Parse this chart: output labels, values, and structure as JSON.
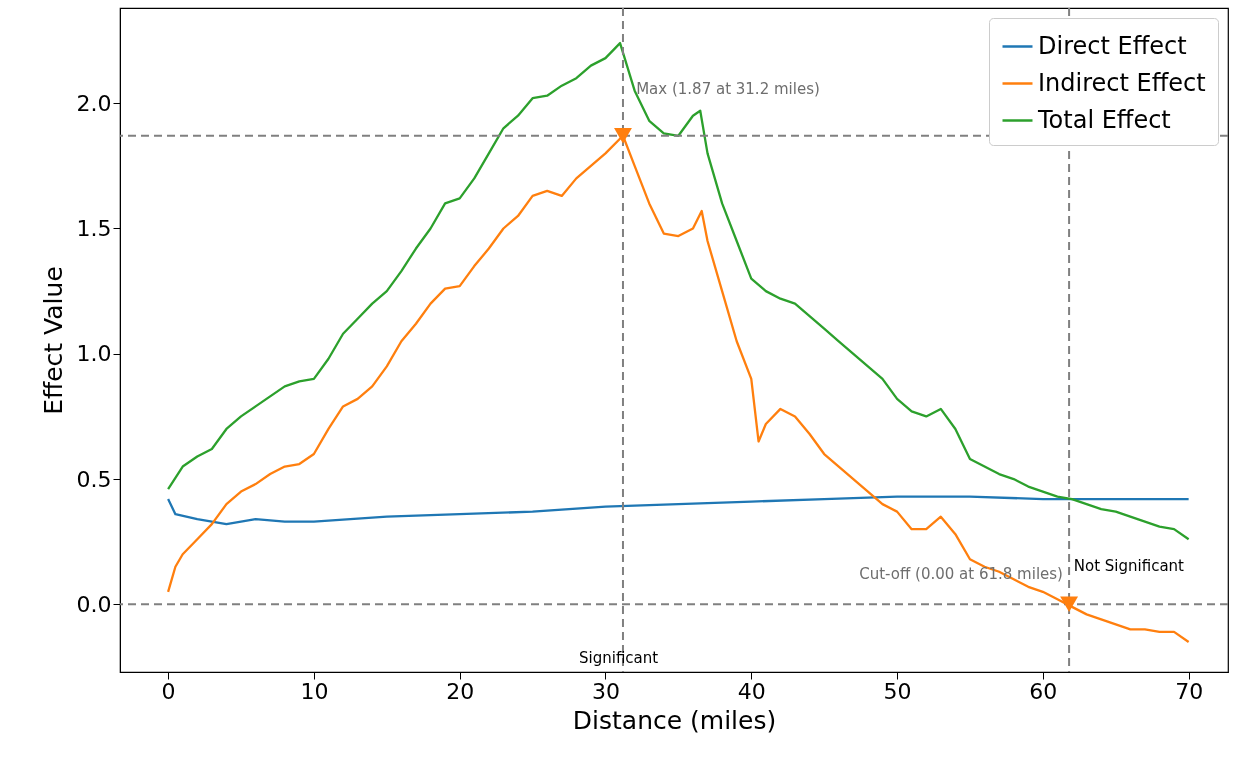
{
  "chart_data": {
    "type": "line",
    "xlabel": "Distance (miles)",
    "ylabel": "Effect Value",
    "xlim": [
      -3.3,
      72.7
    ],
    "ylim": [
      -0.27,
      2.38
    ],
    "xticks": [
      0,
      10,
      20,
      30,
      40,
      50,
      60,
      70
    ],
    "yticks": [
      {
        "value": 0,
        "label": "0.0"
      },
      {
        "value": 0.5,
        "label": "0.5"
      },
      {
        "value": 1,
        "label": "1.0"
      },
      {
        "value": 1.5,
        "label": "1.5"
      },
      {
        "value": 2,
        "label": "2.0"
      }
    ],
    "grid": false,
    "legend": "top right",
    "line_style": "solid",
    "marker": "none",
    "series": [
      {
        "name": "Direct Effect",
        "color": "#1f77b4",
        "x": [
          0,
          0.5,
          2,
          4,
          6,
          8,
          10,
          15,
          20,
          25,
          30,
          35,
          40,
          45,
          50,
          55,
          60,
          65,
          70
        ],
        "values": [
          0.42,
          0.36,
          0.34,
          0.32,
          0.34,
          0.33,
          0.33,
          0.35,
          0.36,
          0.37,
          0.39,
          0.4,
          0.41,
          0.42,
          0.43,
          0.43,
          0.42,
          0.42,
          0.42
        ]
      },
      {
        "name": "Indirect Effect",
        "color": "#ff7f0e",
        "x": [
          0,
          0.5,
          1,
          2,
          3,
          4,
          5,
          6,
          7,
          8,
          9,
          10,
          11,
          12,
          13,
          14,
          15,
          16,
          17,
          18,
          19,
          20,
          21,
          22,
          23,
          24,
          25,
          26,
          27,
          28,
          29,
          30,
          31.2,
          32,
          33,
          34,
          35,
          36,
          36.6,
          37,
          38,
          39,
          40,
          40.5,
          41,
          42,
          43,
          44,
          45,
          46,
          47,
          48,
          49,
          50,
          51,
          52,
          53,
          54,
          55,
          56,
          57,
          58,
          59,
          60,
          61,
          62,
          63,
          64,
          65,
          66,
          67,
          68,
          69,
          70
        ],
        "values": [
          0.05,
          0.15,
          0.2,
          0.26,
          0.32,
          0.4,
          0.45,
          0.48,
          0.52,
          0.55,
          0.56,
          0.6,
          0.7,
          0.79,
          0.82,
          0.87,
          0.95,
          1.05,
          1.12,
          1.2,
          1.26,
          1.27,
          1.35,
          1.42,
          1.5,
          1.55,
          1.63,
          1.65,
          1.63,
          1.7,
          1.75,
          1.8,
          1.87,
          1.75,
          1.6,
          1.48,
          1.47,
          1.5,
          1.57,
          1.45,
          1.25,
          1.05,
          0.9,
          0.65,
          0.72,
          0.78,
          0.75,
          0.68,
          0.6,
          0.55,
          0.5,
          0.45,
          0.4,
          0.37,
          0.3,
          0.3,
          0.35,
          0.28,
          0.18,
          0.15,
          0.13,
          0.1,
          0.07,
          0.05,
          0.02,
          -0.01,
          -0.04,
          -0.06,
          -0.08,
          -0.1,
          -0.1,
          -0.11,
          -0.11,
          -0.15
        ]
      },
      {
        "name": "Total Effect",
        "color": "#2ca02c",
        "x": [
          0,
          1,
          2,
          3,
          4,
          5,
          6,
          7,
          8,
          9,
          10,
          11,
          12,
          13,
          14,
          15,
          16,
          17,
          18,
          19,
          20,
          21,
          22,
          23,
          24,
          25,
          26,
          27,
          28,
          29,
          30,
          31,
          32,
          33,
          34,
          35,
          36,
          36.5,
          37,
          38,
          39,
          40,
          41,
          42,
          43,
          44,
          45,
          46,
          47,
          48,
          49,
          50,
          51,
          52,
          53,
          54,
          55,
          56,
          57,
          58,
          59,
          60,
          61,
          62,
          63,
          64,
          65,
          66,
          67,
          68,
          69,
          70
        ],
        "values": [
          0.46,
          0.55,
          0.59,
          0.62,
          0.7,
          0.75,
          0.79,
          0.83,
          0.87,
          0.89,
          0.9,
          0.98,
          1.08,
          1.14,
          1.2,
          1.25,
          1.33,
          1.42,
          1.5,
          1.6,
          1.62,
          1.7,
          1.8,
          1.9,
          1.95,
          2.02,
          2.03,
          2.07,
          2.1,
          2.15,
          2.18,
          2.24,
          2.05,
          1.93,
          1.88,
          1.87,
          1.95,
          1.97,
          1.8,
          1.6,
          1.45,
          1.3,
          1.25,
          1.22,
          1.2,
          1.15,
          1.1,
          1.05,
          1,
          0.95,
          0.9,
          0.82,
          0.77,
          0.75,
          0.78,
          0.7,
          0.58,
          0.55,
          0.52,
          0.5,
          0.47,
          0.45,
          0.43,
          0.42,
          0.4,
          0.38,
          0.37,
          0.35,
          0.33,
          0.31,
          0.3,
          0.26
        ]
      },
      {
        "type": "scatter",
        "marker": "triangle",
        "color": "#ff7f0e",
        "x": [
          31.2,
          61.8
        ],
        "values": [
          1.87,
          0
        ]
      }
    ],
    "ref_lines": [
      {
        "axis": "y",
        "value": 1.87,
        "color": "#808080",
        "line_style": "dashed"
      },
      {
        "axis": "x",
        "value": 31.2,
        "color": "#808080",
        "line_style": "dashed"
      },
      {
        "axis": "y",
        "value": 0,
        "color": "#808080",
        "line_style": "dashed"
      },
      {
        "axis": "x",
        "value": 61.8,
        "color": "#808080",
        "line_style": "dashed"
      }
    ],
    "annotations": [
      {
        "text": "Max (1.87 at 31.2 miles)",
        "x": 31.2,
        "y": 1.87
      },
      {
        "text": "Cut-off (0.00 at 61.8 miles)",
        "x": 61.8,
        "y": 0
      },
      "Significant",
      "Not Significant"
    ]
  }
}
